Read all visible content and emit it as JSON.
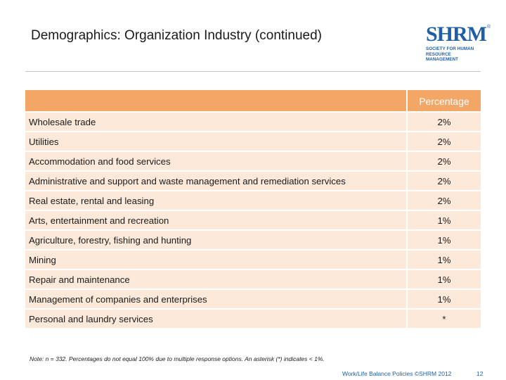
{
  "header": {
    "title": "Demographics: Organization Industry (continued)"
  },
  "logo": {
    "letters": "SHRM",
    "registered": "®",
    "line1": "SOCIETY FOR HUMAN",
    "line2": "RESOURCE MANAGEMENT",
    "color": "#1f5fa3"
  },
  "table": {
    "header_color": "#f4a667",
    "row_color": "#fde9d9",
    "column_header": "Percentage",
    "rows": [
      {
        "label": "Wholesale trade",
        "value": "2%"
      },
      {
        "label": " Utilities",
        "value": "2%"
      },
      {
        "label": "Accommodation and food services",
        "value": "2%"
      },
      {
        "label": "Administrative and support and waste management and remediation services",
        "value": "2%"
      },
      {
        "label": "Real estate, rental and leasing",
        "value": "2%"
      },
      {
        "label": "Arts, entertainment and recreation",
        "value": "1%"
      },
      {
        "label": "Agriculture, forestry, fishing and hunting",
        "value": "1%"
      },
      {
        "label": "Mining",
        "value": "1%"
      },
      {
        "label": "Repair and maintenance",
        "value": "1%"
      },
      {
        "label": "Management of companies and enterprises",
        "value": "1%"
      },
      {
        "label": "Personal and laundry services",
        "value": "*"
      }
    ]
  },
  "note": "Note: n = 332. Percentages do not equal 100% due to multiple response options. An asterisk (*) indicates < 1%.",
  "footer": {
    "text": "Work/Life Balance Policies ©SHRM 2012",
    "page_number": "12"
  }
}
